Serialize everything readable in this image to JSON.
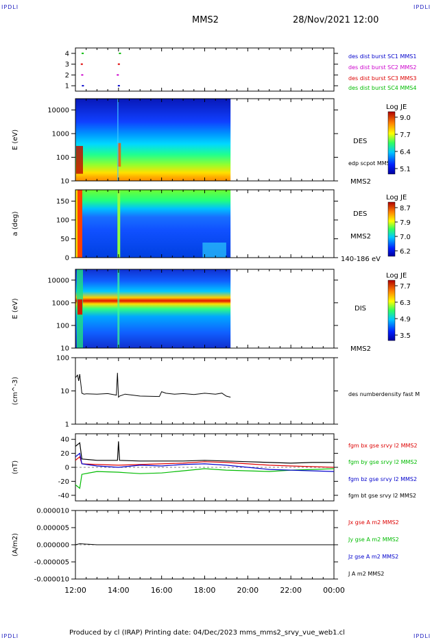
{
  "header": {
    "corner_label": "IPDLI",
    "spacecraft": "MMS2",
    "datetime": "28/Nov/2021 12:00"
  },
  "footer": {
    "text": "Produced by cl (IRAP)   Printing date: 04/Dec/2023   mms_mms2_srvy_vue_web1.cl"
  },
  "x_axis": {
    "tick_labels": [
      "12:00",
      "14:00",
      "16:00",
      "18:00",
      "20:00",
      "22:00",
      "00:00"
    ],
    "range_hours": [
      0,
      12
    ]
  },
  "colors": {
    "mms1": "#0000cc",
    "mms2": "#cc00cc",
    "mms3": "#dd0000",
    "mms4": "#00bb00",
    "black": "#000000"
  },
  "chart_data": [
    {
      "type": "scatter",
      "panel": "availability",
      "y_ticks": [
        "4",
        "3",
        "2",
        "1"
      ],
      "ylim": [
        0.5,
        4.5
      ],
      "series": [
        {
          "name": "des dist burst SC1 MMS1",
          "y": 1,
          "x": [
            0.33,
            2.0
          ]
        },
        {
          "name": "des dist burst SC2 MMS2",
          "y": 2,
          "x": [
            0.3,
            1.95
          ]
        },
        {
          "name": "des dist burst SC3 MMS3",
          "y": 3,
          "x": [
            0.28,
            2.0
          ]
        },
        {
          "name": "des dist burst SC4 MMS4",
          "y": 4,
          "x": [
            0.32,
            2.05
          ]
        }
      ]
    },
    {
      "type": "heatmap",
      "panel": "des-energy",
      "ylabel": "E (eV)",
      "y_scale": "log",
      "ylim": [
        10,
        30000
      ],
      "y_ticks": [
        "10000",
        "1000",
        "100",
        "10"
      ],
      "x_data_end_hours": 7.2,
      "labels": [
        "DES",
        "edp scpot MMS2",
        "MMS2"
      ],
      "colorbar": {
        "title": "Log JE",
        "ticks": [
          "9.0",
          "7.7",
          "6.4",
          "5.1"
        ],
        "range": [
          5.1,
          9.0
        ]
      }
    },
    {
      "type": "heatmap",
      "panel": "des-pitch",
      "ylabel": "a (deg)",
      "ylim": [
        0,
        180
      ],
      "y_ticks": [
        "150",
        "100",
        "50",
        "0"
      ],
      "x_data_end_hours": 7.2,
      "labels": [
        "DES",
        "MMS2",
        "140-186 eV"
      ],
      "colorbar": {
        "title": "Log JE",
        "ticks": [
          "8.7",
          "7.9",
          "7.0",
          "6.2"
        ],
        "range": [
          6.2,
          8.7
        ]
      }
    },
    {
      "type": "heatmap",
      "panel": "dis-energy",
      "ylabel": "E (eV)",
      "y_scale": "log",
      "ylim": [
        10,
        30000
      ],
      "y_ticks": [
        "10000",
        "1000",
        "100",
        "10"
      ],
      "x_data_end_hours": 7.2,
      "labels": [
        "DIS",
        "MMS2"
      ],
      "colorbar": {
        "title": "Log JE",
        "ticks": [
          "7.7",
          "6.3",
          "4.9",
          "3.5"
        ],
        "range": [
          3.5,
          7.7
        ]
      }
    },
    {
      "type": "line",
      "panel": "density",
      "ylabel": "(cm^-3)",
      "y_scale": "log",
      "ylim": [
        1,
        100
      ],
      "y_ticks": [
        "100",
        "10",
        "1"
      ],
      "series": [
        {
          "name": "des numberdensity fast M",
          "x": [
            0,
            0.1,
            0.15,
            0.2,
            0.3,
            0.4,
            0.5,
            1.0,
            1.5,
            1.9,
            1.95,
            2.0,
            2.05,
            2.3,
            3.0,
            3.9,
            4.0,
            4.2,
            4.6,
            5.0,
            5.5,
            6.0,
            6.5,
            6.8,
            7.0,
            7.2
          ],
          "y": [
            25,
            30,
            20,
            32,
            8.5,
            8.0,
            8.2,
            8.0,
            8.3,
            7.5,
            35,
            6.5,
            7.0,
            8.0,
            7.0,
            6.8,
            9.5,
            8.5,
            8.0,
            8.3,
            7.8,
            8.5,
            8.0,
            8.6,
            7.0,
            6.5
          ]
        }
      ]
    },
    {
      "type": "line",
      "panel": "magnetic-field",
      "ylabel": "(nT)",
      "ylim": [
        -48,
        48
      ],
      "y_ticks": [
        "40",
        "20",
        "0",
        "-20",
        "-40"
      ],
      "series": [
        {
          "name": "fgm bx gse srvy l2 MMS2",
          "color": "#dd0000",
          "x": [
            0,
            0.2,
            0.3,
            1,
            2,
            3,
            4,
            5,
            6,
            7,
            8,
            9,
            10,
            11,
            12
          ],
          "y": [
            10,
            15,
            5,
            4,
            3,
            4,
            5,
            6,
            8,
            7,
            5,
            3,
            2,
            1,
            0
          ]
        },
        {
          "name": "fgm by gse srvy l2 MMS2",
          "color": "#00bb00",
          "x": [
            0,
            0.2,
            0.3,
            1,
            2,
            2.5,
            3,
            4,
            5,
            6,
            7,
            8,
            9,
            10,
            11,
            12
          ],
          "y": [
            -25,
            -30,
            -10,
            -6,
            -7,
            -8,
            -9,
            -8,
            -5,
            -2,
            -4,
            -5,
            -6,
            -4,
            -3,
            -2
          ]
        },
        {
          "name": "fgm bz gse srvy l2 MMS2",
          "color": "#0000cc",
          "x": [
            0,
            0.2,
            0.3,
            1,
            2,
            3,
            4,
            5,
            6,
            7,
            8,
            9,
            10,
            11,
            12
          ],
          "y": [
            15,
            20,
            5,
            2,
            0,
            3,
            2,
            4,
            5,
            3,
            0,
            -3,
            -4,
            -5,
            -6
          ]
        },
        {
          "name": "fgm bt gse srvy l2 MMS2",
          "color": "#000000",
          "x": [
            0,
            0.2,
            0.3,
            1,
            1.95,
            2.0,
            2.05,
            3,
            4,
            5,
            6,
            7,
            8,
            9,
            10,
            11,
            12
          ],
          "y": [
            30,
            35,
            12,
            10,
            10,
            37,
            10,
            9,
            9,
            9,
            10,
            9,
            8,
            7,
            6,
            7,
            7
          ]
        }
      ]
    },
    {
      "type": "line",
      "panel": "current-density",
      "ylabel": "(A/m2)",
      "ylim": [
        -1e-05,
        1e-05
      ],
      "y_ticks": [
        "0.000010",
        "0.000005",
        "0.000000",
        "-0.000005",
        "-0.000010"
      ],
      "series": [
        {
          "name": "Jx gse A m2 MMS2",
          "color": "#dd0000"
        },
        {
          "name": "Jy gse A m2 MMS2",
          "color": "#00bb00"
        },
        {
          "name": "Jz gse A m2 MMS2",
          "color": "#0000cc"
        },
        {
          "name": "J A m2 MMS2",
          "color": "#000000",
          "x": [
            0,
            0.2,
            1,
            2,
            3,
            4,
            5,
            6,
            7,
            8,
            9,
            10,
            11,
            12
          ],
          "y": [
            0,
            3e-07,
            0,
            0,
            0,
            0,
            0,
            0,
            0,
            0,
            0,
            0,
            0,
            0
          ]
        }
      ]
    }
  ]
}
